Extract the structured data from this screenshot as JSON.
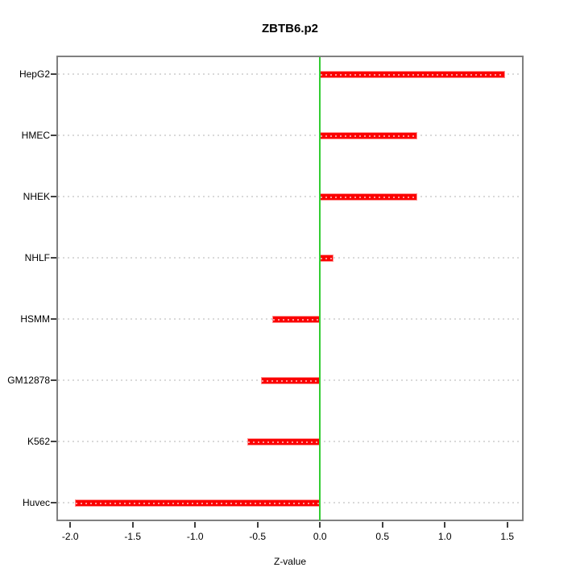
{
  "chart_data": {
    "type": "bar",
    "orientation": "horizontal",
    "title": "ZBTB6.p2",
    "xlabel": "Z-value",
    "ylabel": "",
    "categories": [
      "HepG2",
      "HMEC",
      "NHEK",
      "NHLF",
      "HSMM",
      "GM12878",
      "K562",
      "Huvec"
    ],
    "values": [
      1.48,
      0.78,
      0.78,
      0.11,
      -0.38,
      -0.47,
      -0.58,
      -1.96
    ],
    "xlim": [
      -2.098,
      1.618
    ],
    "x_tick_labels": [
      "-2.0",
      "-1.5",
      "-1.0",
      "-0.5",
      "0.0",
      "0.5",
      "1.0",
      "1.5"
    ],
    "zero_line_x": 0,
    "grid": true,
    "legend": "none",
    "colors": {
      "bar": "#fb0000",
      "bar_edge": "#ff9090",
      "zero_line": "#33cc33",
      "grid": "#d9d9d9",
      "box": "#808080",
      "text": "#000000"
    }
  }
}
